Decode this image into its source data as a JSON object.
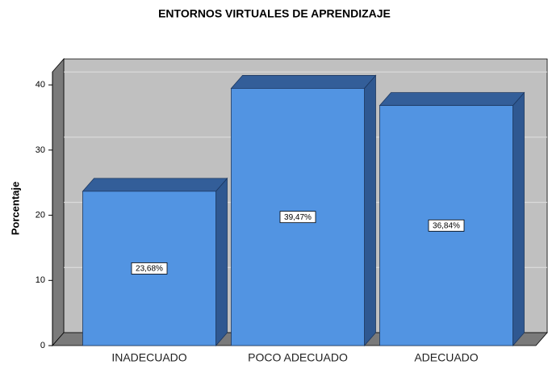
{
  "chart_data": {
    "type": "bar3d",
    "title": "ENTORNOS VIRTUALES DE APRENDIZAJE",
    "y_label": "Porcentaje",
    "categories": [
      "INADECUADO",
      "POCO ADECUADO",
      "ADECUADO"
    ],
    "values": [
      23.68,
      39.47,
      36.84
    ],
    "value_labels": [
      "23,68%",
      "39,47%",
      "36,84%"
    ],
    "color": "#5294e2",
    "ylim": [
      0,
      42
    ],
    "yticks": [
      0,
      10,
      20,
      30,
      40
    ],
    "grid": true
  }
}
